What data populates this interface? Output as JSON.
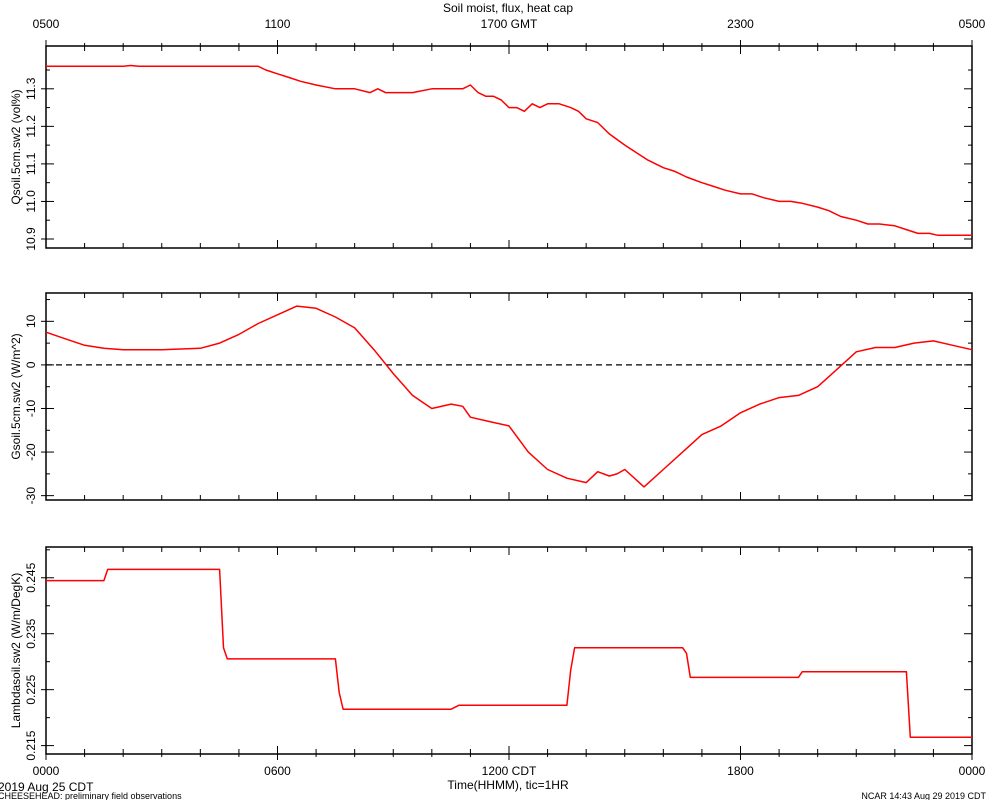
{
  "chart_data": {
    "type": "line",
    "title": "Soil moist, flux, heat cap",
    "top_axis": {
      "label": "GMT",
      "ticks": [
        {
          "h": 0,
          "label": "0500"
        },
        {
          "h": 6,
          "label": "1100"
        },
        {
          "h": 12,
          "label": "1700 GMT"
        },
        {
          "h": 18,
          "label": "2300"
        },
        {
          "h": 24,
          "label": "0500"
        }
      ]
    },
    "bottom_axis": {
      "xlabel": "Time(HHMM), tic=1HR",
      "date_label": "2019 Aug 25 CDT",
      "xlim": [
        0,
        24
      ],
      "ticks": [
        {
          "h": 0,
          "label": "0000"
        },
        {
          "h": 6,
          "label": "0600"
        },
        {
          "h": 12,
          "label": "1200 CDT"
        },
        {
          "h": 18,
          "label": "1800"
        },
        {
          "h": 24,
          "label": "0000"
        }
      ]
    },
    "footer_left": "CHEESEHEAD: preliminary field observations",
    "footer_right": "NCAR 14:43 Aug 29 2019 CDT",
    "line_color": "#ff0000",
    "panels": [
      {
        "ylabel": "Qsoil.5cm.sw2 (vol%)",
        "ylim": [
          10.876,
          11.414
        ],
        "yticks": [
          10.9,
          11.0,
          11.1,
          11.2,
          11.3
        ],
        "ytick_labels": [
          "10.9",
          "11.0",
          "11.1",
          "11.2",
          "11.3"
        ],
        "zero_line": false,
        "series": {
          "x": [
            0,
            2.0,
            2.2,
            2.4,
            4.0,
            5.5,
            5.7,
            6.0,
            6.3,
            6.6,
            7.0,
            7.5,
            8.0,
            8.4,
            8.6,
            8.8,
            9.5,
            10.0,
            10.2,
            10.4,
            10.8,
            11.0,
            11.2,
            11.4,
            11.6,
            11.8,
            12.0,
            12.2,
            12.4,
            12.6,
            12.8,
            13.0,
            13.3,
            13.6,
            13.8,
            14.0,
            14.3,
            14.6,
            15.0,
            15.3,
            15.6,
            16.0,
            16.3,
            16.6,
            17.0,
            17.3,
            17.6,
            18.0,
            18.3,
            18.6,
            19.0,
            19.3,
            19.6,
            20.0,
            20.3,
            20.6,
            21.0,
            21.3,
            21.6,
            22.0,
            22.3,
            22.6,
            22.9,
            23.1,
            24.0
          ],
          "y": [
            11.36,
            11.36,
            11.362,
            11.36,
            11.36,
            11.36,
            11.35,
            11.34,
            11.33,
            11.32,
            11.31,
            11.3,
            11.3,
            11.29,
            11.3,
            11.29,
            11.29,
            11.3,
            11.3,
            11.3,
            11.3,
            11.31,
            11.29,
            11.28,
            11.28,
            11.27,
            11.25,
            11.25,
            11.24,
            11.26,
            11.25,
            11.26,
            11.26,
            11.25,
            11.24,
            11.22,
            11.21,
            11.18,
            11.15,
            11.13,
            11.11,
            11.09,
            11.08,
            11.065,
            11.05,
            11.04,
            11.03,
            11.02,
            11.02,
            11.01,
            11.0,
            11.0,
            10.995,
            10.985,
            10.975,
            10.96,
            10.95,
            10.94,
            10.94,
            10.935,
            10.925,
            10.915,
            10.915,
            10.91,
            10.91
          ]
        }
      },
      {
        "ylabel": "Gsoil.5cm.sw2 (W/m^2)",
        "ylim": [
          -31,
          16.5
        ],
        "yticks": [
          -30,
          -20,
          -10,
          0,
          10
        ],
        "ytick_labels": [
          "-30",
          "-20",
          "-10",
          "0",
          "10"
        ],
        "zero_line": true,
        "series": {
          "x": [
            0,
            0.5,
            1.0,
            1.5,
            2.0,
            3.0,
            4.0,
            4.5,
            5.0,
            5.5,
            6.0,
            6.5,
            7.0,
            7.5,
            8.0,
            8.5,
            9.0,
            9.5,
            10.0,
            10.5,
            10.8,
            11.0,
            11.5,
            12.0,
            12.5,
            13.0,
            13.5,
            14.0,
            14.3,
            14.6,
            14.8,
            15.0,
            15.5,
            16.0,
            16.5,
            17.0,
            17.5,
            18.0,
            18.5,
            19.0,
            19.5,
            20.0,
            20.5,
            21.0,
            21.5,
            22.0,
            22.5,
            23.0,
            23.5,
            24.0
          ],
          "y": [
            7.5,
            6,
            4.5,
            3.8,
            3.5,
            3.5,
            3.8,
            5,
            7,
            9.5,
            11.5,
            13.5,
            13,
            11,
            8.5,
            3.5,
            -2,
            -7,
            -10,
            -9,
            -9.5,
            -12,
            -13,
            -14,
            -20,
            -24,
            -26,
            -27,
            -24.5,
            -25.5,
            -25,
            -24,
            -28,
            -24,
            -20,
            -16,
            -14,
            -11,
            -9,
            -7.5,
            -7,
            -5,
            -1,
            3,
            4,
            4,
            5,
            5.5,
            4.5,
            3.5
          ]
        }
      },
      {
        "ylabel": "Lambdasoil.sw2 (W/m/DegK)",
        "ylim": [
          0.2135,
          0.2505
        ],
        "yticks": [
          0.215,
          0.225,
          0.235,
          0.245
        ],
        "ytick_labels": [
          "0.215",
          "0.225",
          "0.235",
          "0.245"
        ],
        "zero_line": false,
        "series": {
          "x": [
            0,
            1.5,
            1.6,
            4.5,
            4.6,
            4.7,
            7.5,
            7.6,
            7.7,
            10.5,
            10.7,
            13.5,
            13.6,
            13.7,
            16.5,
            16.6,
            16.7,
            19.5,
            19.6,
            22.3,
            22.4,
            24.0
          ],
          "y": [
            0.2445,
            0.2445,
            0.2465,
            0.2465,
            0.2325,
            0.2305,
            0.2305,
            0.2245,
            0.2215,
            0.2215,
            0.2222,
            0.2222,
            0.2285,
            0.2325,
            0.2325,
            0.2315,
            0.2272,
            0.2272,
            0.2282,
            0.2282,
            0.2165,
            0.2165
          ]
        }
      }
    ]
  }
}
